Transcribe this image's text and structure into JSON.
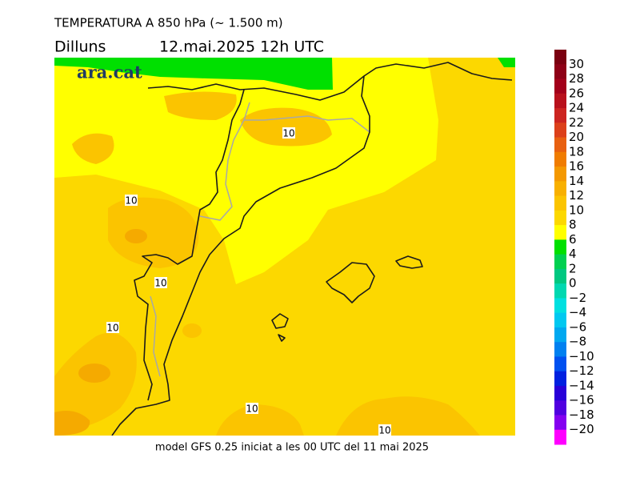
{
  "header": {
    "title": "TEMPERATURA A 850 hPa (~ 1.500 m)",
    "day": "Dilluns",
    "datetime": "12.mai.2025 12h UTC"
  },
  "map": {
    "logo": "ara.cat",
    "contour_labels": [
      "10",
      "10",
      "10",
      "10",
      "10",
      "10"
    ]
  },
  "colorbar": {
    "labels": [
      "30",
      "28",
      "26",
      "24",
      "22",
      "20",
      "18",
      "16",
      "14",
      "12",
      "10",
      "8",
      "6",
      "4",
      "2",
      "0",
      "−2",
      "−4",
      "−6",
      "−8",
      "−10",
      "−12",
      "−14",
      "−16",
      "−18",
      "−20"
    ],
    "colors": [
      "#7a0010",
      "#8e0016",
      "#a3001a",
      "#b8101c",
      "#cc2420",
      "#dc401a",
      "#e86010",
      "#f07c00",
      "#f49800",
      "#f8b000",
      "#fbc400",
      "#fcd800",
      "#ffff00",
      "#00e000",
      "#00d050",
      "#00c880",
      "#00d8b0",
      "#00e0e0",
      "#00c8f0",
      "#00a8f0",
      "#0080f0",
      "#0050f0",
      "#0020e0",
      "#2800d8",
      "#5000e0",
      "#8400f0",
      "#ff00ff"
    ]
  },
  "footer": "model GFS 0.25 iniciat a les 00 UTC del 11 mai 2025"
}
